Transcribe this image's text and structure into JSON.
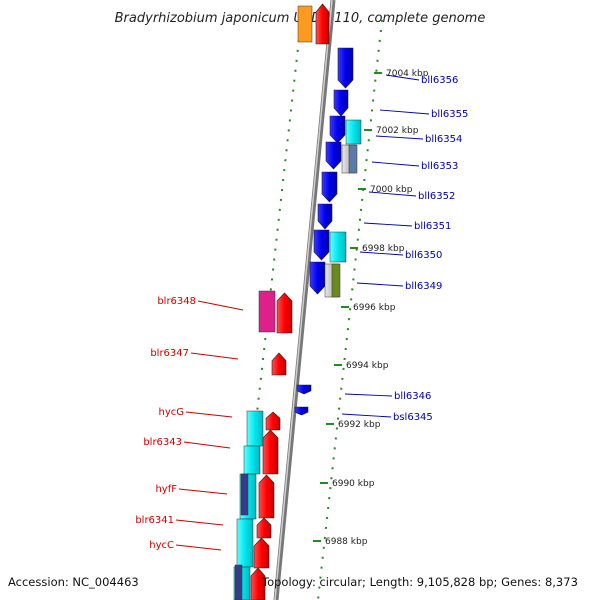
{
  "title": "Bradyrhizobium japonicum USDA 110, complete genome",
  "footer": {
    "accession": "Accession: NC_004463",
    "topology": "Topology: circular; Length: 9,105,828 bp; Genes: 8,373"
  },
  "ticks": [
    {
      "label": "7004 kbp"
    },
    {
      "label": "7002 kbp"
    },
    {
      "label": "7000 kbp"
    },
    {
      "label": "6998 kbp"
    },
    {
      "label": "6996 kbp"
    },
    {
      "label": "6994 kbp"
    },
    {
      "label": "6992 kbp"
    },
    {
      "label": "6990 kbp"
    },
    {
      "label": "6988 kbp"
    }
  ],
  "right_genes": [
    {
      "label": "bll6356",
      "color": "#0000aa"
    },
    {
      "label": "bll6355",
      "color": "#0000aa"
    },
    {
      "label": "bll6354",
      "color": "#0000aa"
    },
    {
      "label": "bll6353",
      "color": "#0000aa"
    },
    {
      "label": "bll6352",
      "color": "#0000aa"
    },
    {
      "label": "bll6351",
      "color": "#0000aa"
    },
    {
      "label": "bll6350",
      "color": "#0000aa"
    },
    {
      "label": "bll6349",
      "color": "#0000aa"
    },
    {
      "label": "bll6346",
      "color": "#0000aa"
    },
    {
      "label": "bsl6345",
      "color": "#0000aa"
    }
  ],
  "left_genes": [
    {
      "label": "blr6348",
      "color": "#cc0000"
    },
    {
      "label": "blr6347",
      "color": "#cc0000"
    },
    {
      "label": "hycG",
      "color": "#cc0000"
    },
    {
      "label": "blr6343",
      "color": "#cc0000"
    },
    {
      "label": "hyfF",
      "color": "#cc0000"
    },
    {
      "label": "blr6341",
      "color": "#cc0000"
    },
    {
      "label": "hycC",
      "color": "#cc0000"
    }
  ],
  "colors": {
    "forward_strand": "#ff0000",
    "reverse_strand": "#0000ee",
    "cog_cyan": "#00e0e8",
    "cog_magenta": "#e0208a",
    "cog_orange": "#ff9a20",
    "cog_slate": "#5a7aa8",
    "cog_olive": "#6a8a20",
    "cog_navy": "#3a3a8a",
    "backbone": "#888888",
    "tick_green": "#228b22"
  }
}
